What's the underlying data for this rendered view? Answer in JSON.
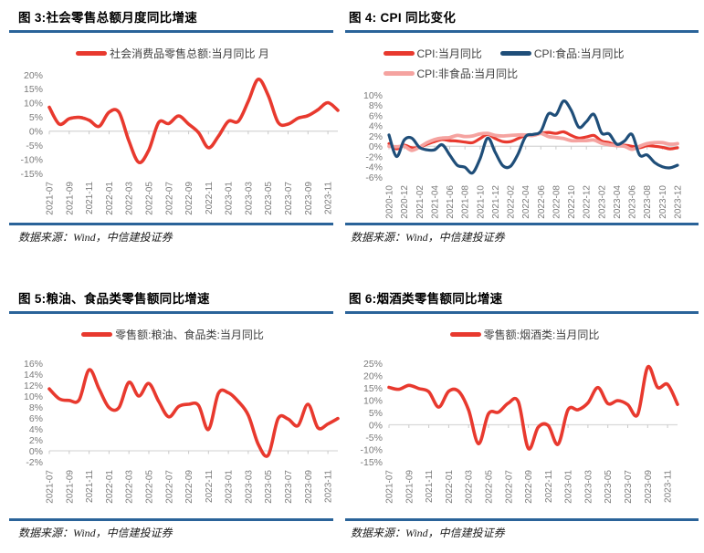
{
  "colors": {
    "rule_blue": "#2a6399",
    "red": "#e8392e",
    "dark_blue": "#1f4e79",
    "pink": "#f5a3a0",
    "axis_gray": "#7a7a7a",
    "baseline_gray": "#d9d9d9"
  },
  "panels": [
    {
      "title": "图 3:社会零售总额月度同比增速",
      "source": "数据来源：Wind，中信建投证券"
    },
    {
      "title": "图 4: CPI 同比变化",
      "source": "数据来源：Wind，中信建投证券"
    },
    {
      "title": "图 5:粮油、食品类零售额同比增速",
      "source": "数据来源：Wind，中信建投证券"
    },
    {
      "title": "图 6:烟酒类零售额同比增速",
      "source": "数据来源：Wind，中信建投证券"
    }
  ],
  "chart_data": [
    {
      "type": "line",
      "title": "图 3:社会零售总额月度同比增速",
      "x": [
        "2021-07",
        "2021-08",
        "2021-09",
        "2021-10",
        "2021-11",
        "2021-12",
        "2022-01",
        "2022-02",
        "2022-03",
        "2022-04",
        "2022-05",
        "2022-06",
        "2022-07",
        "2022-08",
        "2022-09",
        "2022-10",
        "2022-11",
        "2022-12",
        "2023-01",
        "2023-02",
        "2023-03",
        "2023-04",
        "2023-05",
        "2023-06",
        "2023-07",
        "2023-08",
        "2023-09",
        "2023-10",
        "2023-11",
        "2023-12"
      ],
      "series": [
        {
          "name": "社会消费品零售总额:当月同比 月",
          "color": "#e8392e",
          "values": [
            8.5,
            2.5,
            4.4,
            4.9,
            3.9,
            1.7,
            6.7,
            6.7,
            -3.5,
            -11.1,
            -6.7,
            3.1,
            2.7,
            5.4,
            2.5,
            -0.5,
            -5.9,
            -1.8,
            3.5,
            3.5,
            10.6,
            18.4,
            12.7,
            3.1,
            2.5,
            4.6,
            5.5,
            7.6,
            10.1,
            7.4
          ]
        }
      ],
      "ylim": [
        -15,
        20
      ],
      "yticks": [
        20,
        15,
        10,
        5,
        0,
        -5,
        -10,
        -15
      ],
      "xtick_every": 2,
      "grid": false,
      "legend_position": "top"
    },
    {
      "type": "line",
      "title": "图 4: CPI 同比变化",
      "x": [
        "2020-10",
        "2020-11",
        "2020-12",
        "2021-01",
        "2021-02",
        "2021-03",
        "2021-04",
        "2021-05",
        "2021-06",
        "2021-07",
        "2021-08",
        "2021-09",
        "2021-10",
        "2021-11",
        "2021-12",
        "2022-01",
        "2022-02",
        "2022-03",
        "2022-04",
        "2022-05",
        "2022-06",
        "2022-07",
        "2022-08",
        "2022-09",
        "2022-10",
        "2022-11",
        "2022-12",
        "2023-01",
        "2023-02",
        "2023-03",
        "2023-04",
        "2023-05",
        "2023-06",
        "2023-07",
        "2023-08",
        "2023-09",
        "2023-10",
        "2023-11",
        "2023-12"
      ],
      "series": [
        {
          "name": "CPI:当月同比",
          "color": "#e8392e",
          "values": [
            0.5,
            -0.5,
            0.2,
            -0.3,
            -0.2,
            0.4,
            0.9,
            1.3,
            1.1,
            1.0,
            0.8,
            0.7,
            1.5,
            2.3,
            1.5,
            0.9,
            0.9,
            1.5,
            2.1,
            2.1,
            2.5,
            2.7,
            2.5,
            2.8,
            2.1,
            1.6,
            1.8,
            2.1,
            1.0,
            0.7,
            0.1,
            0.2,
            0.0,
            -0.3,
            0.1,
            0.0,
            -0.2,
            -0.5,
            -0.3
          ]
        },
        {
          "name": "CPI:食品:当月同比",
          "color": "#1f4e79",
          "values": [
            2.2,
            -2.0,
            1.2,
            1.6,
            -0.2,
            -0.7,
            -0.7,
            0.3,
            -1.7,
            -3.7,
            -4.1,
            -5.2,
            -2.4,
            1.6,
            -1.2,
            -3.8,
            -3.9,
            -1.5,
            1.9,
            2.3,
            2.9,
            6.3,
            6.1,
            8.8,
            7.0,
            3.7,
            4.8,
            6.2,
            2.6,
            2.4,
            0.4,
            1.0,
            2.3,
            -1.7,
            -1.7,
            -3.2,
            -4.0,
            -4.2,
            -3.7
          ]
        },
        {
          "name": "CPI:非食品:当月同比",
          "color": "#f5a3a0",
          "values": [
            0.0,
            -0.1,
            0.0,
            -0.8,
            -0.2,
            0.7,
            1.3,
            1.6,
            1.7,
            2.1,
            1.9,
            2.0,
            2.4,
            2.5,
            2.1,
            2.0,
            2.1,
            2.2,
            2.2,
            2.1,
            2.5,
            1.9,
            1.7,
            1.5,
            1.1,
            1.1,
            1.1,
            1.2,
            0.6,
            0.3,
            0.1,
            0.0,
            -0.6,
            0.0,
            0.5,
            0.7,
            0.7,
            0.4,
            0.5
          ]
        }
      ],
      "ylim": [
        -6,
        10
      ],
      "yticks": [
        10,
        8,
        6,
        4,
        2,
        0,
        -2,
        -4,
        -6
      ],
      "xtick_every": 2,
      "grid": false,
      "legend_position": "top"
    },
    {
      "type": "line",
      "title": "图 5:粮油、食品类零售额同比增速",
      "x": [
        "2021-07",
        "2021-08",
        "2021-09",
        "2021-10",
        "2021-11",
        "2021-12",
        "2022-01",
        "2022-02",
        "2022-03",
        "2022-04",
        "2022-05",
        "2022-06",
        "2022-07",
        "2022-08",
        "2022-09",
        "2022-10",
        "2022-11",
        "2022-12",
        "2023-01",
        "2023-02",
        "2023-03",
        "2023-04",
        "2023-05",
        "2023-06",
        "2023-07",
        "2023-08",
        "2023-09",
        "2023-10",
        "2023-11",
        "2023-12"
      ],
      "series": [
        {
          "name": "零售额:粮油、食品类:当月同比",
          "color": "#e8392e",
          "values": [
            11.3,
            9.5,
            9.2,
            9.3,
            14.8,
            11.3,
            7.9,
            7.9,
            12.5,
            10.0,
            12.3,
            9.0,
            6.2,
            8.1,
            8.5,
            8.3,
            3.9,
            10.5,
            10.6,
            9.0,
            6.5,
            1.2,
            -0.8,
            5.9,
            5.8,
            4.6,
            8.5,
            4.2,
            4.9,
            5.9
          ]
        }
      ],
      "ylim": [
        -2,
        16
      ],
      "yticks": [
        16,
        14,
        12,
        10,
        8,
        6,
        4,
        2,
        0,
        -2
      ],
      "xtick_every": 2,
      "grid": false,
      "legend_position": "top"
    },
    {
      "type": "line",
      "title": "图 6:烟酒类零售额同比增速",
      "x": [
        "2021-07",
        "2021-08",
        "2021-09",
        "2021-10",
        "2021-11",
        "2021-12",
        "2022-01",
        "2022-02",
        "2022-03",
        "2022-04",
        "2022-05",
        "2022-06",
        "2022-07",
        "2022-08",
        "2022-09",
        "2022-10",
        "2022-11",
        "2022-12",
        "2023-01",
        "2023-02",
        "2023-03",
        "2023-04",
        "2023-05",
        "2023-06",
        "2023-07",
        "2023-08",
        "2023-09",
        "2023-10",
        "2023-11",
        "2023-12"
      ],
      "series": [
        {
          "name": "零售额:烟酒类:当月同比",
          "color": "#e8392e",
          "values": [
            15.2,
            14.4,
            16.0,
            14.7,
            13.4,
            7.2,
            13.6,
            13.6,
            6.0,
            -7.7,
            4.5,
            5.1,
            8.8,
            9.3,
            -9.6,
            -1.0,
            -0.3,
            -7.9,
            6.1,
            6.1,
            8.9,
            15.1,
            8.6,
            9.8,
            8.2,
            4.2,
            23.4,
            15.2,
            16.4,
            8.3
          ]
        }
      ],
      "ylim": [
        -15,
        25
      ],
      "yticks": [
        25,
        20,
        15,
        10,
        5,
        0,
        -5,
        -10,
        -15
      ],
      "xtick_every": 2,
      "grid": false,
      "legend_position": "top"
    }
  ]
}
